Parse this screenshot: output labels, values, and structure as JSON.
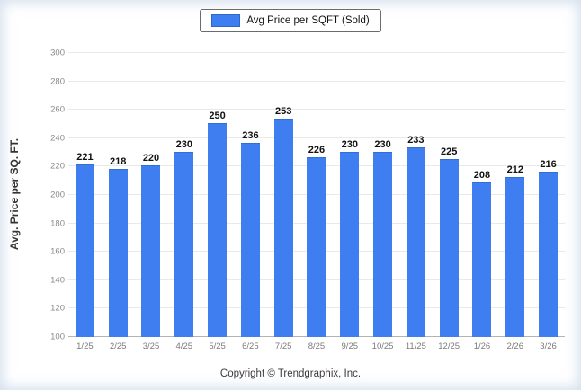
{
  "legend": {
    "label": "Avg Price per SQFT (Sold)",
    "swatch_color": "#3e7ef0"
  },
  "footer": {
    "copyright": "Copyright © Trendgraphix, Inc."
  },
  "chart_data": {
    "type": "bar",
    "categories": [
      "1/25",
      "2/25",
      "3/25",
      "4/25",
      "5/25",
      "6/25",
      "7/25",
      "8/25",
      "9/25",
      "10/25",
      "11/25",
      "12/25",
      "1/26",
      "2/26",
      "3/26"
    ],
    "values": [
      221,
      218,
      220,
      230,
      250,
      236,
      253,
      226,
      230,
      230,
      233,
      225,
      208,
      212,
      216
    ],
    "title": "",
    "xlabel": "",
    "ylabel": "Avg. Price per SQ. FT.",
    "ylim": [
      100,
      300
    ],
    "ytick_step": 20,
    "grid": true,
    "legend_position": "top",
    "bar_color": "#3e7ef0"
  }
}
